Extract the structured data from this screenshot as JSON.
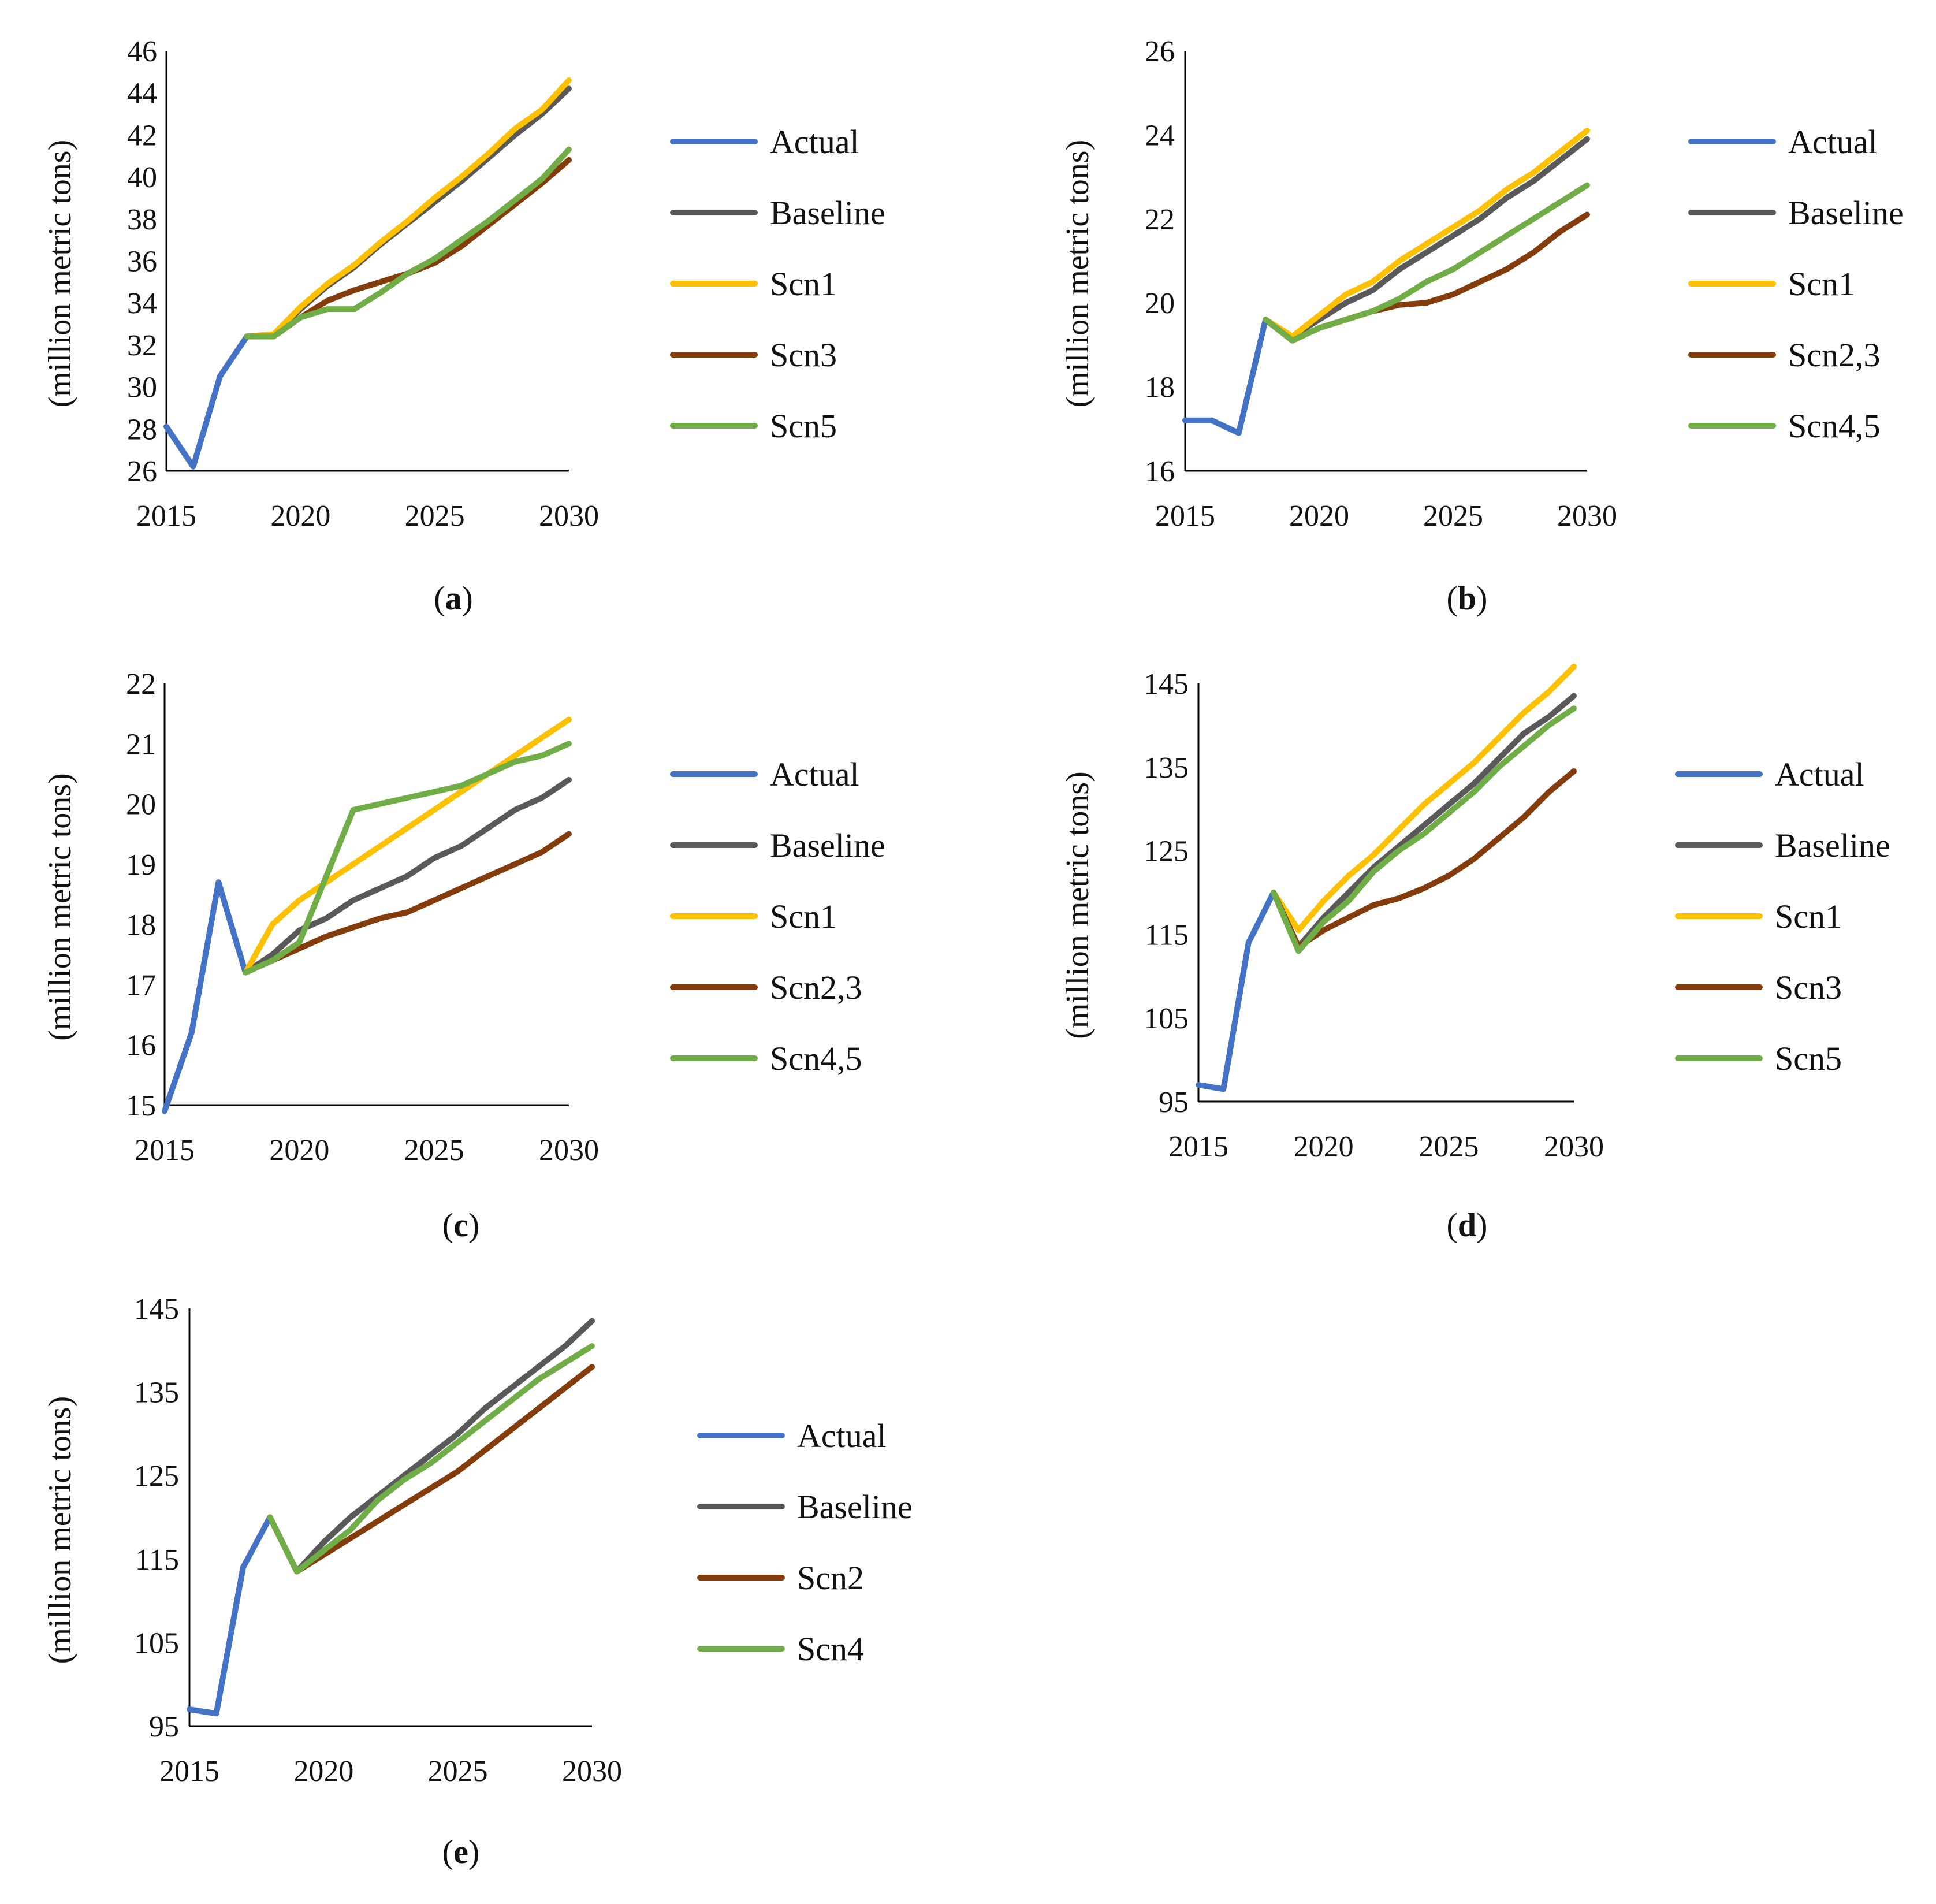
{
  "colors": {
    "Actual": "#4472C4",
    "Baseline": "#595959",
    "Scn1": "#FFC000",
    "Scn2": "#843C0C",
    "Scn2,3": "#843C0C",
    "Scn3": "#843C0C",
    "Scn4": "#70AD47",
    "Scn4,5": "#70AD47",
    "Scn5": "#70AD47"
  },
  "chart_data": [
    {
      "type": "line",
      "panel": "a",
      "caption": "a",
      "ylabel": "(million metric tons)",
      "xlabel": "",
      "ylim": [
        26,
        46
      ],
      "yticks": [
        26,
        28,
        30,
        32,
        34,
        36,
        38,
        40,
        42,
        44,
        46
      ],
      "xlim": [
        2015,
        2030
      ],
      "xticks": [
        2015,
        2020,
        2025,
        2030
      ],
      "legend": [
        "Actual",
        "Baseline",
        "Scn1",
        "Scn3",
        "Scn5"
      ],
      "series": [
        {
          "name": "Actual",
          "x": [
            2015,
            2016,
            2017,
            2018
          ],
          "values": [
            28.1,
            26.2,
            30.5,
            32.4
          ]
        },
        {
          "name": "Baseline",
          "x": [
            2018,
            2019,
            2020,
            2021,
            2022,
            2023,
            2024,
            2025,
            2026,
            2027,
            2028,
            2029,
            2030
          ],
          "values": [
            32.4,
            32.5,
            33.7,
            34.8,
            35.7,
            36.8,
            37.8,
            38.8,
            39.8,
            40.9,
            42.0,
            43.0,
            44.2
          ]
        },
        {
          "name": "Scn1",
          "x": [
            2018,
            2019,
            2020,
            2021,
            2022,
            2023,
            2024,
            2025,
            2026,
            2027,
            2028,
            2029,
            2030
          ],
          "values": [
            32.4,
            32.5,
            33.8,
            34.9,
            35.8,
            36.9,
            37.9,
            39.0,
            40.0,
            41.1,
            42.3,
            43.2,
            44.6
          ]
        },
        {
          "name": "Scn3",
          "x": [
            2018,
            2019,
            2020,
            2021,
            2022,
            2023,
            2024,
            2025,
            2026,
            2027,
            2028,
            2029,
            2030
          ],
          "values": [
            32.4,
            32.4,
            33.3,
            34.1,
            34.6,
            35.0,
            35.4,
            35.9,
            36.7,
            37.7,
            38.7,
            39.7,
            40.8
          ]
        },
        {
          "name": "Scn5",
          "x": [
            2018,
            2019,
            2020,
            2021,
            2022,
            2023,
            2024,
            2025,
            2026,
            2027,
            2028,
            2029,
            2030
          ],
          "values": [
            32.4,
            32.4,
            33.3,
            33.7,
            33.7,
            34.5,
            35.4,
            36.1,
            37.0,
            37.9,
            38.9,
            39.9,
            41.3
          ]
        }
      ]
    },
    {
      "type": "line",
      "panel": "b",
      "caption": "b",
      "ylabel": "(million metric tons)",
      "xlabel": "",
      "ylim": [
        16,
        26
      ],
      "yticks": [
        16,
        18,
        20,
        22,
        24,
        26
      ],
      "xlim": [
        2015,
        2030
      ],
      "xticks": [
        2015,
        2020,
        2025,
        2030
      ],
      "legend": [
        "Actual",
        "Baseline",
        "Scn1",
        "Scn2,3",
        "Scn4,5"
      ],
      "series": [
        {
          "name": "Actual",
          "x": [
            2015,
            2016,
            2017,
            2018
          ],
          "values": [
            17.2,
            17.2,
            16.9,
            19.6
          ]
        },
        {
          "name": "Baseline",
          "x": [
            2018,
            2019,
            2020,
            2021,
            2022,
            2023,
            2024,
            2025,
            2026,
            2027,
            2028,
            2029,
            2030
          ],
          "values": [
            19.6,
            19.2,
            19.6,
            20.0,
            20.3,
            20.8,
            21.2,
            21.6,
            22.0,
            22.5,
            22.9,
            23.4,
            23.9
          ]
        },
        {
          "name": "Scn1",
          "x": [
            2018,
            2019,
            2020,
            2021,
            2022,
            2023,
            2024,
            2025,
            2026,
            2027,
            2028,
            2029,
            2030
          ],
          "values": [
            19.6,
            19.2,
            19.7,
            20.2,
            20.5,
            21.0,
            21.4,
            21.8,
            22.2,
            22.7,
            23.1,
            23.6,
            24.1
          ]
        },
        {
          "name": "Scn2,3",
          "x": [
            2018,
            2019,
            2020,
            2021,
            2022,
            2023,
            2024,
            2025,
            2026,
            2027,
            2028,
            2029,
            2030
          ],
          "values": [
            19.6,
            19.1,
            19.4,
            19.6,
            19.8,
            19.95,
            20.0,
            20.2,
            20.5,
            20.8,
            21.2,
            21.7,
            22.1
          ]
        },
        {
          "name": "Scn4,5",
          "x": [
            2018,
            2019,
            2020,
            2021,
            2022,
            2023,
            2024,
            2025,
            2026,
            2027,
            2028,
            2029,
            2030
          ],
          "values": [
            19.6,
            19.1,
            19.4,
            19.6,
            19.8,
            20.1,
            20.5,
            20.8,
            21.2,
            21.6,
            22.0,
            22.4,
            22.8
          ]
        }
      ]
    },
    {
      "type": "line",
      "panel": "c",
      "caption": "c",
      "ylabel": "(million metric tons)",
      "xlabel": "",
      "ylim": [
        15,
        22
      ],
      "yticks": [
        15,
        16,
        17,
        18,
        19,
        20,
        21,
        22
      ],
      "xlim": [
        2015,
        2030
      ],
      "xticks": [
        2015,
        2020,
        2025,
        2030
      ],
      "legend": [
        "Actual",
        "Baseline",
        "Scn1",
        "Scn2,3",
        "Scn4,5"
      ],
      "series": [
        {
          "name": "Actual",
          "x": [
            2015,
            2016,
            2017,
            2018
          ],
          "values": [
            14.9,
            16.2,
            18.7,
            17.2
          ]
        },
        {
          "name": "Baseline",
          "x": [
            2018,
            2019,
            2020,
            2021,
            2022,
            2023,
            2024,
            2025,
            2026,
            2027,
            2028,
            2029,
            2030
          ],
          "values": [
            17.2,
            17.5,
            17.9,
            18.1,
            18.4,
            18.6,
            18.8,
            19.1,
            19.3,
            19.6,
            19.9,
            20.1,
            20.4
          ]
        },
        {
          "name": "Scn1",
          "x": [
            2018,
            2019,
            2020,
            2021,
            2022,
            2023,
            2024,
            2025,
            2026,
            2027,
            2028,
            2029,
            2030
          ],
          "values": [
            17.2,
            18.0,
            18.4,
            18.7,
            19.0,
            19.3,
            19.6,
            19.9,
            20.2,
            20.5,
            20.8,
            21.1,
            21.4
          ]
        },
        {
          "name": "Scn2,3",
          "x": [
            2018,
            2019,
            2020,
            2021,
            2022,
            2023,
            2024,
            2025,
            2026,
            2027,
            2028,
            2029,
            2030
          ],
          "values": [
            17.2,
            17.4,
            17.6,
            17.8,
            17.95,
            18.1,
            18.2,
            18.4,
            18.6,
            18.8,
            19.0,
            19.2,
            19.5
          ]
        },
        {
          "name": "Scn4,5",
          "x": [
            2018,
            2019,
            2020,
            2021,
            2022,
            2023,
            2024,
            2025,
            2026,
            2027,
            2028,
            2029,
            2030
          ],
          "values": [
            17.2,
            17.4,
            17.7,
            18.8,
            19.9,
            20.0,
            20.1,
            20.2,
            20.3,
            20.5,
            20.7,
            20.8,
            21.0
          ]
        }
      ]
    },
    {
      "type": "line",
      "panel": "d",
      "caption": "d",
      "ylabel": "(million metric tons)",
      "xlabel": "",
      "ylim": [
        95,
        145
      ],
      "yticks": [
        95,
        105,
        115,
        125,
        135,
        145
      ],
      "xlim": [
        2015,
        2030
      ],
      "xticks": [
        2015,
        2020,
        2025,
        2030
      ],
      "legend": [
        "Actual",
        "Baseline",
        "Scn1",
        "Scn3",
        "Scn5"
      ],
      "series": [
        {
          "name": "Actual",
          "x": [
            2015,
            2016,
            2017,
            2018
          ],
          "values": [
            97.0,
            96.5,
            114.0,
            120.0
          ]
        },
        {
          "name": "Baseline",
          "x": [
            2018,
            2019,
            2020,
            2021,
            2022,
            2023,
            2024,
            2025,
            2026,
            2027,
            2028,
            2029,
            2030
          ],
          "values": [
            120.0,
            113.5,
            117.0,
            120.0,
            123.0,
            125.5,
            128.0,
            130.5,
            133.0,
            136.0,
            139.0,
            141.0,
            143.5
          ]
        },
        {
          "name": "Scn1",
          "x": [
            2018,
            2019,
            2020,
            2021,
            2022,
            2023,
            2024,
            2025,
            2026,
            2027,
            2028,
            2029,
            2030
          ],
          "values": [
            120.0,
            115.5,
            119.0,
            122.0,
            124.5,
            127.5,
            130.5,
            133.0,
            135.5,
            138.5,
            141.5,
            144.0,
            147.0
          ]
        },
        {
          "name": "Scn3",
          "x": [
            2018,
            2019,
            2020,
            2021,
            2022,
            2023,
            2024,
            2025,
            2026,
            2027,
            2028,
            2029,
            2030
          ],
          "values": [
            120.0,
            113.5,
            115.5,
            117.0,
            118.5,
            119.3,
            120.5,
            122.0,
            124.0,
            126.5,
            129.0,
            132.0,
            134.5
          ]
        },
        {
          "name": "Scn5",
          "x": [
            2018,
            2019,
            2020,
            2021,
            2022,
            2023,
            2024,
            2025,
            2026,
            2027,
            2028,
            2029,
            2030
          ],
          "values": [
            120.0,
            113.0,
            116.5,
            119.0,
            122.5,
            125.0,
            127.0,
            129.5,
            132.0,
            135.0,
            137.5,
            140.0,
            142.0
          ]
        }
      ]
    },
    {
      "type": "line",
      "panel": "e",
      "caption": "e",
      "ylabel": "(million metric tons)",
      "xlabel": "",
      "ylim": [
        95,
        145
      ],
      "yticks": [
        95,
        105,
        115,
        125,
        135,
        145
      ],
      "xlim": [
        2015,
        2030
      ],
      "xticks": [
        2015,
        2020,
        2025,
        2030
      ],
      "legend": [
        "Actual",
        "Baseline",
        "Scn2",
        "Scn4"
      ],
      "series": [
        {
          "name": "Actual",
          "x": [
            2015,
            2016,
            2017,
            2018
          ],
          "values": [
            97.0,
            96.5,
            114.0,
            120.0
          ]
        },
        {
          "name": "Baseline",
          "x": [
            2018,
            2019,
            2020,
            2021,
            2022,
            2023,
            2024,
            2025,
            2026,
            2027,
            2028,
            2029,
            2030
          ],
          "values": [
            120.0,
            113.5,
            117.0,
            120.0,
            122.5,
            125.0,
            127.5,
            130.0,
            133.0,
            135.5,
            138.0,
            140.5,
            143.5
          ]
        },
        {
          "name": "Scn2",
          "x": [
            2018,
            2019,
            2020,
            2021,
            2022,
            2023,
            2024,
            2025,
            2026,
            2027,
            2028,
            2029,
            2030
          ],
          "values": [
            120.0,
            113.5,
            115.5,
            117.5,
            119.5,
            121.5,
            123.5,
            125.5,
            128.0,
            130.5,
            133.0,
            135.5,
            138.0
          ]
        },
        {
          "name": "Scn4",
          "x": [
            2018,
            2019,
            2020,
            2021,
            2022,
            2023,
            2024,
            2025,
            2026,
            2027,
            2028,
            2029,
            2030
          ],
          "values": [
            120.0,
            113.5,
            116.0,
            118.5,
            122.0,
            124.5,
            126.5,
            129.0,
            131.5,
            134.0,
            136.5,
            138.5,
            140.5
          ]
        }
      ]
    }
  ]
}
